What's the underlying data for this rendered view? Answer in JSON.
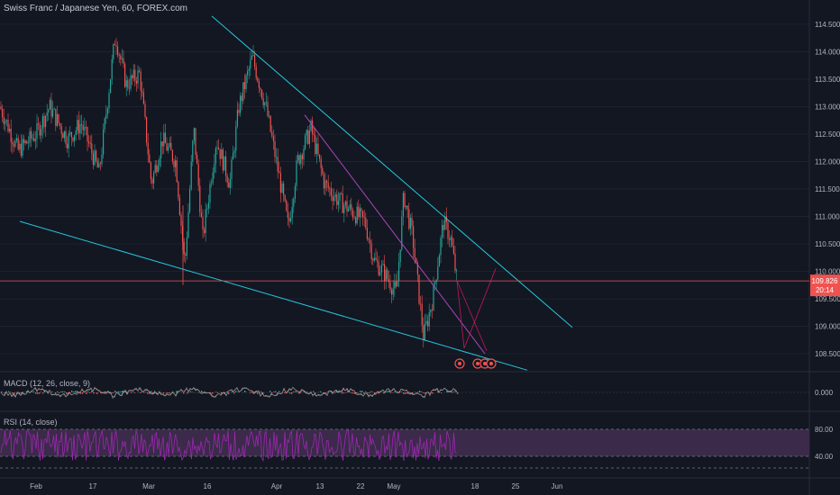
{
  "header": {
    "title": "Swiss Franc / Japanese Yen, 60, FOREX.com"
  },
  "price_label": {
    "value": "109.826",
    "countdown": "20:14"
  },
  "macd": {
    "label": "MACD (12, 26, close, 9)",
    "zero_label": "0.000"
  },
  "rsi": {
    "label": "RSI (14, close)",
    "upper": "80.00",
    "lower": "40.00"
  },
  "colors": {
    "background": "#131722",
    "up": "#26a69a",
    "down": "#ef5350",
    "trendline": "#26c6da",
    "channel": "#ab47bc",
    "price_line": "#ef5350",
    "rsi_fill": "#3b2a4a",
    "rsi_line": "#9c27b0"
  },
  "chart_data": {
    "type": "candlestick",
    "symbol": "Swiss Franc / Japanese Yen",
    "interval": "60",
    "source": "FOREX.com",
    "y_ticks": [
      "114.500",
      "114.000",
      "113.500",
      "113.000",
      "112.500",
      "112.000",
      "111.500",
      "111.000",
      "110.500",
      "110.000",
      "109.500",
      "109.000",
      "108.500"
    ],
    "y_range": [
      108.25,
      114.9
    ],
    "x_ticks": [
      "Feb",
      "17",
      "Mar",
      "16",
      "Apr",
      "13",
      "22",
      "May",
      "18",
      "25",
      "Jun"
    ],
    "last_price": 109.826,
    "price_path": [
      {
        "x": 0,
        "y": 113.0
      },
      {
        "x": 20,
        "y": 112.2
      },
      {
        "x": 40,
        "y": 112.5
      },
      {
        "x": 55,
        "y": 113.0
      },
      {
        "x": 75,
        "y": 112.4
      },
      {
        "x": 90,
        "y": 112.7
      },
      {
        "x": 110,
        "y": 111.8
      },
      {
        "x": 120,
        "y": 113.2
      },
      {
        "x": 128,
        "y": 114.3
      },
      {
        "x": 140,
        "y": 113.4
      },
      {
        "x": 155,
        "y": 113.6
      },
      {
        "x": 168,
        "y": 111.6
      },
      {
        "x": 180,
        "y": 112.4
      },
      {
        "x": 195,
        "y": 112.0
      },
      {
        "x": 205,
        "y": 110.1
      },
      {
        "x": 215,
        "y": 112.6
      },
      {
        "x": 225,
        "y": 110.6
      },
      {
        "x": 240,
        "y": 112.4
      },
      {
        "x": 255,
        "y": 111.6
      },
      {
        "x": 265,
        "y": 113.0
      },
      {
        "x": 280,
        "y": 113.9
      },
      {
        "x": 295,
        "y": 113.0
      },
      {
        "x": 310,
        "y": 111.7
      },
      {
        "x": 320,
        "y": 110.8
      },
      {
        "x": 330,
        "y": 112.0
      },
      {
        "x": 345,
        "y": 112.6
      },
      {
        "x": 360,
        "y": 111.6
      },
      {
        "x": 375,
        "y": 111.3
      },
      {
        "x": 390,
        "y": 111.1
      },
      {
        "x": 405,
        "y": 110.9
      },
      {
        "x": 415,
        "y": 110.2
      },
      {
        "x": 425,
        "y": 110.0
      },
      {
        "x": 440,
        "y": 109.6
      },
      {
        "x": 448,
        "y": 111.4
      },
      {
        "x": 458,
        "y": 110.6
      },
      {
        "x": 470,
        "y": 108.8
      },
      {
        "x": 480,
        "y": 109.5
      },
      {
        "x": 492,
        "y": 110.9
      },
      {
        "x": 500,
        "y": 110.6
      },
      {
        "x": 507,
        "y": 109.83
      }
    ],
    "trendlines": [
      {
        "name": "upper",
        "from": {
          "x": 235,
          "y": 114.65
        },
        "to": {
          "x": 635,
          "y": 108.98
        },
        "color": "#26c6da"
      },
      {
        "name": "lower",
        "from": {
          "x": 22,
          "y": 110.91
        },
        "to": {
          "x": 585,
          "y": 108.2
        },
        "color": "#26c6da"
      },
      {
        "name": "channel",
        "from": {
          "x": 338,
          "y": 112.85
        },
        "to": {
          "x": 538,
          "y": 108.5
        },
        "color": "#ab47bc"
      }
    ],
    "projection": [
      {
        "x": 507,
        "y": 109.83
      },
      {
        "x": 515,
        "y": 108.6
      },
      {
        "x": 550,
        "y": 110.05
      }
    ],
    "panes": [
      {
        "name": "MACD",
        "zero": 0
      },
      {
        "name": "RSI",
        "bands": [
          40,
          80
        ]
      }
    ]
  }
}
